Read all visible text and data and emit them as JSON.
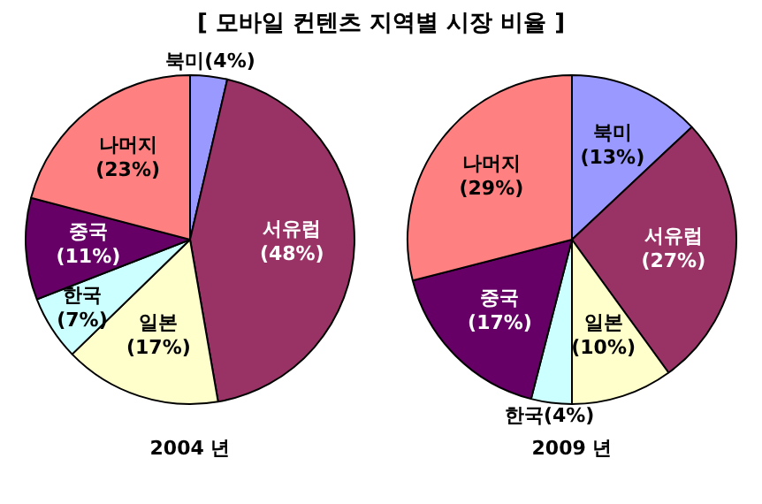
{
  "chart_data": [
    {
      "type": "pie",
      "title": "[ 모바일 컨텐츠 지역별 시장 비율 ]",
      "xlabel": "2004 년",
      "categories": [
        "북미",
        "서유럽",
        "일본",
        "한국",
        "중국",
        "나머지"
      ],
      "values": [
        4,
        48,
        17,
        7,
        11,
        23
      ],
      "value_labels": [
        "(4%)",
        "(48%)",
        "(17%)",
        "(7%)",
        "(11%)",
        "(23%)"
      ],
      "colors": [
        "#9999ff",
        "#993366",
        "#ffffcc",
        "#ccffff",
        "#660066",
        "#ff8080"
      ],
      "legend": false
    },
    {
      "type": "pie",
      "xlabel": "2009 년",
      "categories": [
        "북미",
        "서유럽",
        "일본",
        "한국",
        "중국",
        "나머지"
      ],
      "values": [
        13,
        27,
        10,
        4,
        17,
        29
      ],
      "value_labels": [
        "(13%)",
        "(27%)",
        "(10%)",
        "(4%)",
        "(17%)",
        "(29%)"
      ],
      "colors": [
        "#9999ff",
        "#993366",
        "#ffffcc",
        "#ccffff",
        "#660066",
        "#ff8080"
      ],
      "legend": false
    }
  ]
}
